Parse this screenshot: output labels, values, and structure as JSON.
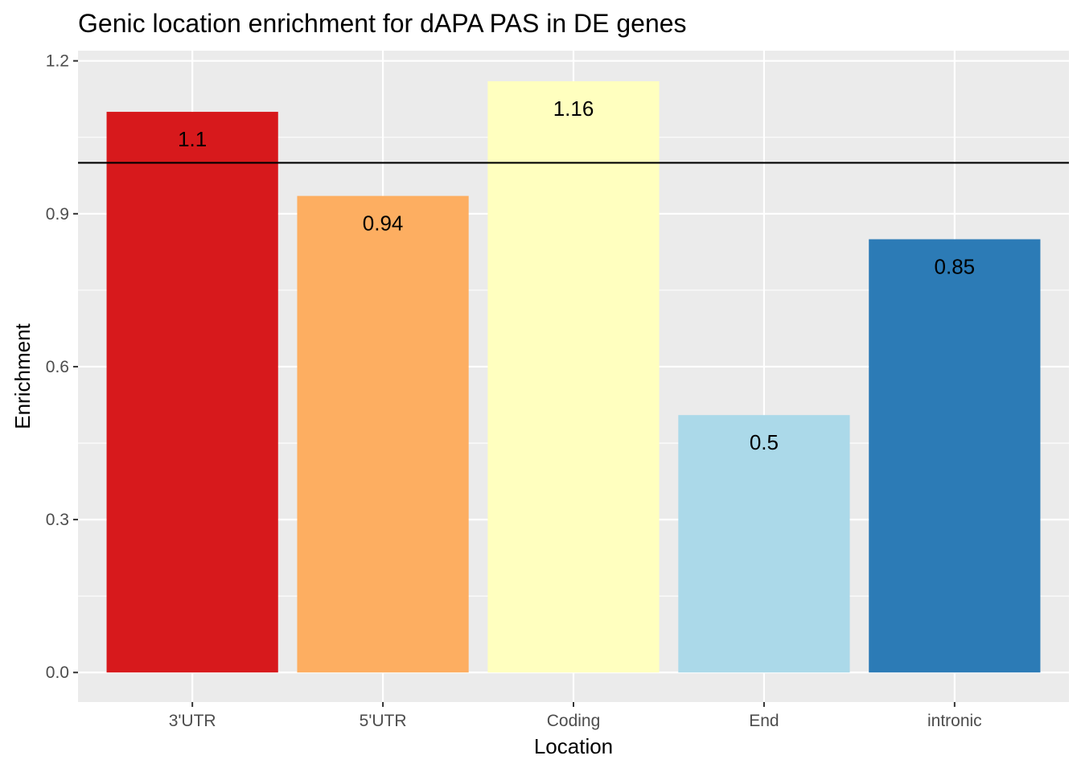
{
  "chart_data": {
    "type": "bar",
    "title": "Genic location enrichment for dAPA PAS in DE genes",
    "xlabel": "Location",
    "ylabel": "Enrichment",
    "categories": [
      "3'UTR",
      "5'UTR",
      "Coding",
      "End",
      "intronic"
    ],
    "values": [
      1.1,
      0.935,
      1.16,
      0.505,
      0.85
    ],
    "data_labels": [
      "1.1",
      "0.94",
      "1.16",
      "0.5",
      "0.85"
    ],
    "colors": [
      "#D7191C",
      "#FDAE61",
      "#FFFFBF",
      "#ABD9E9",
      "#2C7BB6"
    ],
    "ylim": [
      -0.058,
      1.22
    ],
    "yticks": [
      0.0,
      0.3,
      0.6,
      0.9,
      1.2
    ],
    "ytick_labels": [
      "0.0",
      "0.3",
      "0.6",
      "0.9",
      "1.2"
    ],
    "reference_line": 1.0,
    "panel_background": "#EBEBEB",
    "grid": true,
    "legend": "none"
  }
}
